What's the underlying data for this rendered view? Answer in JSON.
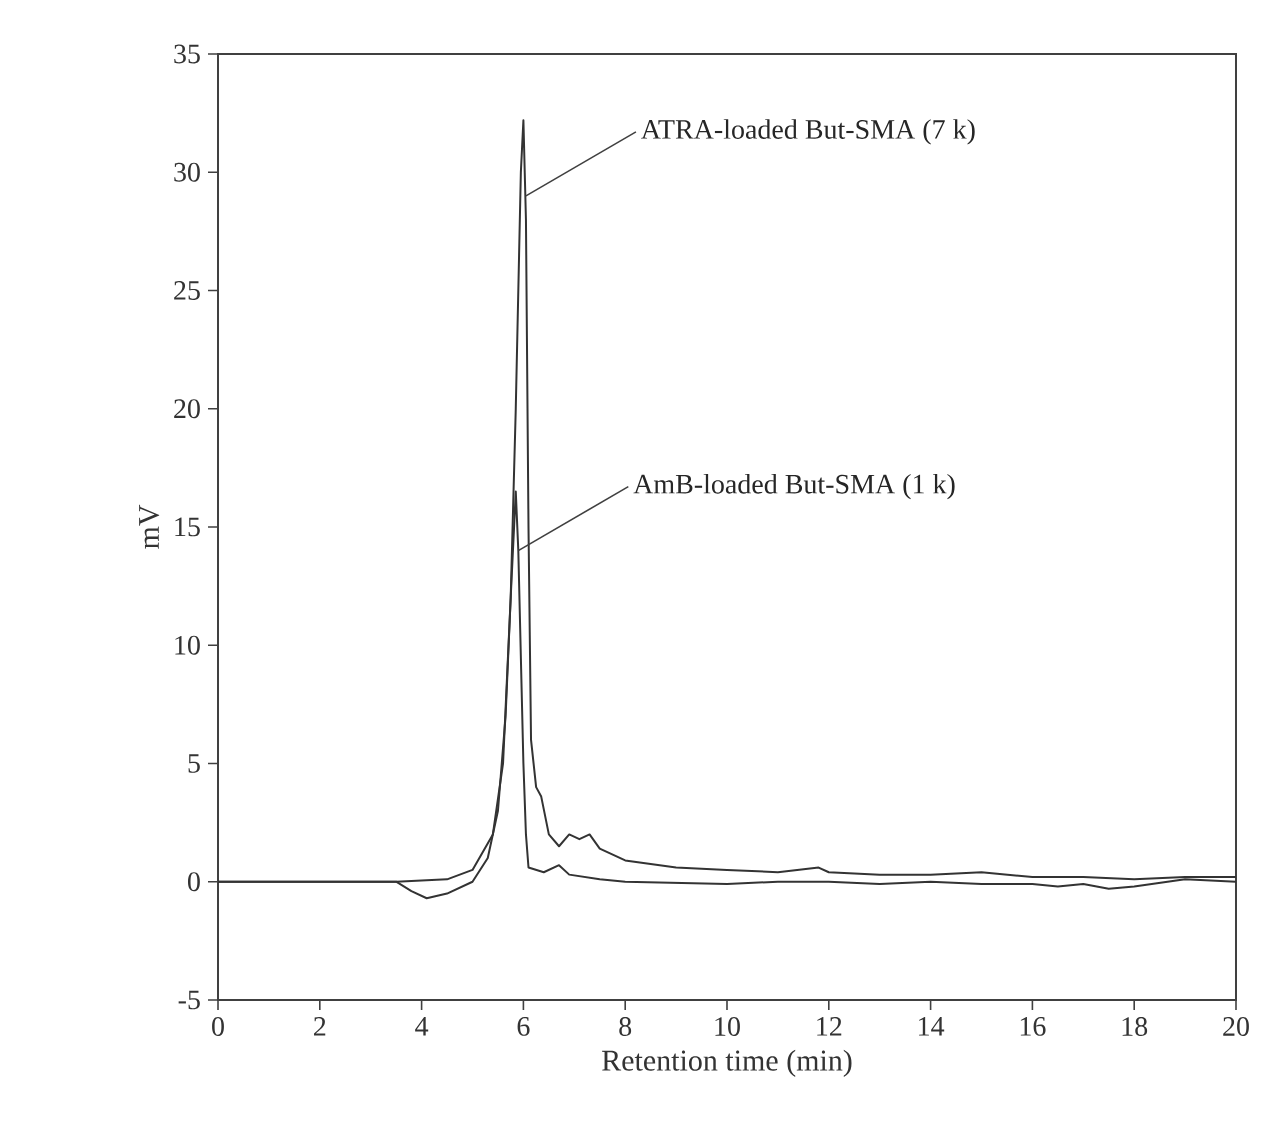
{
  "chart_data": {
    "type": "line",
    "xlabel": "Retention time (min)",
    "ylabel": "mV",
    "xlim": [
      0,
      20
    ],
    "xticks": [
      0,
      2,
      4,
      6,
      8,
      10,
      12,
      14,
      16,
      18,
      20
    ],
    "ylim": [
      -5,
      35
    ],
    "yticks": [
      -5,
      0,
      5,
      10,
      15,
      20,
      25,
      30,
      35
    ],
    "marker": "none",
    "line_style": "solid",
    "series": [
      {
        "color": "#333333",
        "x": [
          0,
          3.5,
          4.5,
          5.0,
          5.4,
          5.6,
          5.75,
          5.85,
          5.95,
          6.0,
          6.05,
          6.1,
          6.15,
          6.25,
          6.35,
          6.5,
          6.7,
          6.9,
          7.1,
          7.3,
          7.5,
          8,
          9,
          10,
          11,
          11.8,
          12,
          13,
          14,
          15,
          16,
          17,
          18,
          19,
          20
        ],
        "values": [
          0,
          0,
          0.1,
          0.5,
          2,
          5,
          12,
          20,
          30,
          32.2,
          28,
          15,
          6,
          4,
          3.6,
          2,
          1.5,
          2,
          1.8,
          2,
          1.4,
          0.9,
          0.6,
          0.5,
          0.4,
          0.6,
          0.4,
          0.3,
          0.3,
          0.4,
          0.2,
          0.2,
          0.1,
          0.2,
          0.2
        ]
      },
      {
        "color": "#333333",
        "x": [
          0,
          3.5,
          3.8,
          4.1,
          4.5,
          5.0,
          5.3,
          5.5,
          5.65,
          5.75,
          5.85,
          5.9,
          6.0,
          6.05,
          6.1,
          6.4,
          6.7,
          6.9,
          7.5,
          8,
          10,
          11,
          12,
          13,
          14,
          15,
          16,
          16.5,
          17,
          17.5,
          18,
          19,
          20
        ],
        "values": [
          0,
          0,
          -0.4,
          -0.7,
          -0.5,
          0,
          1,
          3,
          7,
          12,
          16.5,
          14,
          5,
          2,
          0.6,
          0.4,
          0.7,
          0.3,
          0.1,
          0,
          -0.1,
          0,
          0,
          -0.1,
          0,
          -0.1,
          -0.1,
          -0.2,
          -0.1,
          -0.3,
          -0.2,
          0.1,
          0
        ]
      }
    ],
    "annotations": [
      {
        "text": "ATRA-loaded But-SMA (7 k)",
        "x": 6.05,
        "y": 29
      },
      {
        "text": "AmB-loaded But-SMA (1 k)",
        "x": 5.9,
        "y": 14
      }
    ]
  }
}
